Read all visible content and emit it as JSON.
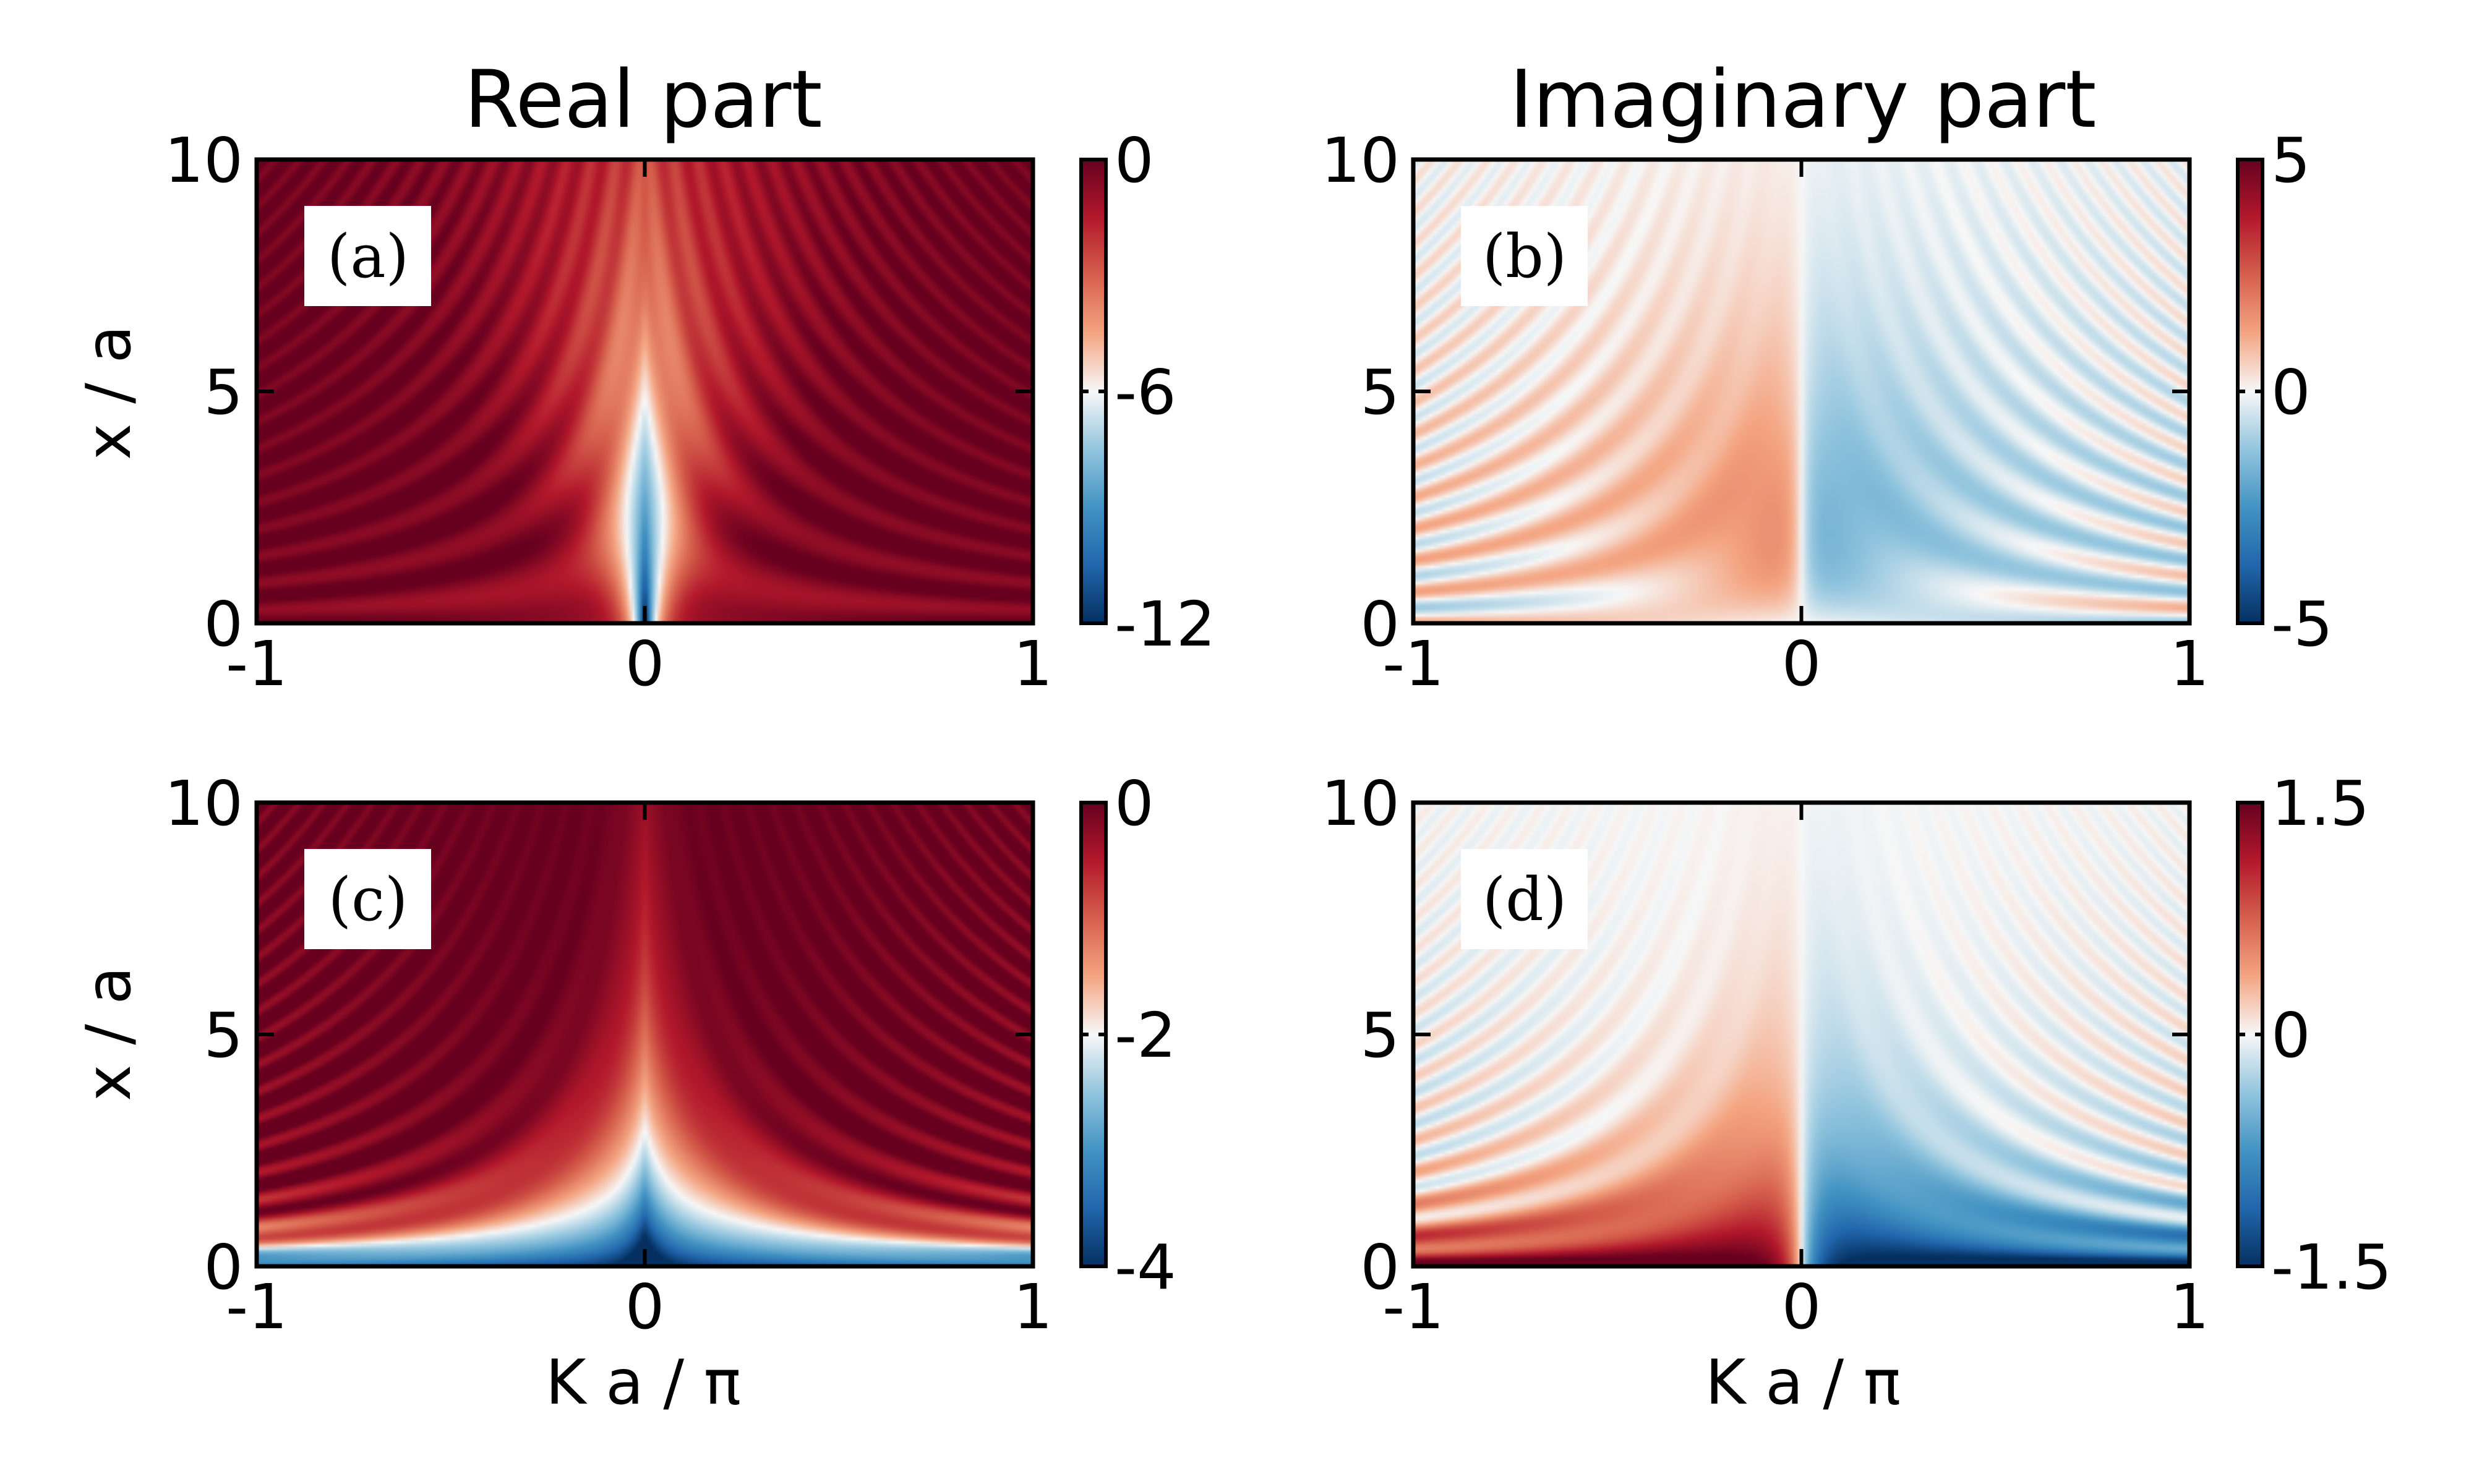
{
  "figure": {
    "column_titles": [
      "Real part",
      "Imaginary part"
    ],
    "row_ylabels": [
      "x / a",
      "x / a"
    ],
    "bottom_xlabels": [
      "K a / π",
      "K a / π"
    ]
  },
  "chart_data": [
    {
      "type": "heatmap",
      "panel_label": "(a)",
      "title": "Real part",
      "xlabel": "",
      "ylabel": "x / a",
      "xlim": [
        -1,
        1
      ],
      "ylim": [
        0,
        10
      ],
      "xticks": [
        -1,
        0,
        1
      ],
      "xtick_labels": [
        "-1",
        "0",
        "1"
      ],
      "yticks": [
        0,
        5,
        10
      ],
      "ytick_labels": [
        "0",
        "5",
        "10"
      ],
      "colormap": "RdBu_r",
      "clim": [
        -12,
        0
      ],
      "colorbar_ticks": [
        0,
        -6,
        -12
      ],
      "colorbar_tick_labels": [
        "0",
        "-6",
        "-12"
      ]
    },
    {
      "type": "heatmap",
      "panel_label": "(b)",
      "title": "Imaginary part",
      "xlabel": "",
      "ylabel": "",
      "xlim": [
        -1,
        1
      ],
      "ylim": [
        0,
        10
      ],
      "xticks": [
        -1,
        0,
        1
      ],
      "xtick_labels": [
        "-1",
        "0",
        "1"
      ],
      "yticks": [
        0,
        5,
        10
      ],
      "ytick_labels": [
        "0",
        "5",
        "10"
      ],
      "colormap": "RdBu_r",
      "clim": [
        -5,
        5
      ],
      "colorbar_ticks": [
        5,
        0,
        -5
      ],
      "colorbar_tick_labels": [
        "5",
        "0",
        "-5"
      ]
    },
    {
      "type": "heatmap",
      "panel_label": "(c)",
      "title": "",
      "xlabel": "K a / π",
      "ylabel": "x / a",
      "xlim": [
        -1,
        1
      ],
      "ylim": [
        0,
        10
      ],
      "xticks": [
        -1,
        0,
        1
      ],
      "xtick_labels": [
        "-1",
        "0",
        "1"
      ],
      "yticks": [
        0,
        5,
        10
      ],
      "ytick_labels": [
        "0",
        "5",
        "10"
      ],
      "colormap": "RdBu_r",
      "clim": [
        -4,
        0
      ],
      "colorbar_ticks": [
        0,
        -2,
        -4
      ],
      "colorbar_tick_labels": [
        "0",
        "-2",
        "-4"
      ]
    },
    {
      "type": "heatmap",
      "panel_label": "(d)",
      "title": "",
      "xlabel": "K a / π",
      "ylabel": "",
      "xlim": [
        -1,
        1
      ],
      "ylim": [
        0,
        10
      ],
      "xticks": [
        -1,
        0,
        1
      ],
      "xtick_labels": [
        "-1",
        "0",
        "1"
      ],
      "yticks": [
        0,
        5,
        10
      ],
      "ytick_labels": [
        "0",
        "5",
        "10"
      ],
      "colormap": "RdBu_r",
      "clim": [
        -1.5,
        1.5
      ],
      "colorbar_ticks": [
        1.5,
        0,
        -1.5
      ],
      "colorbar_tick_labels": [
        "1.5",
        "0",
        "-1.5"
      ]
    }
  ]
}
